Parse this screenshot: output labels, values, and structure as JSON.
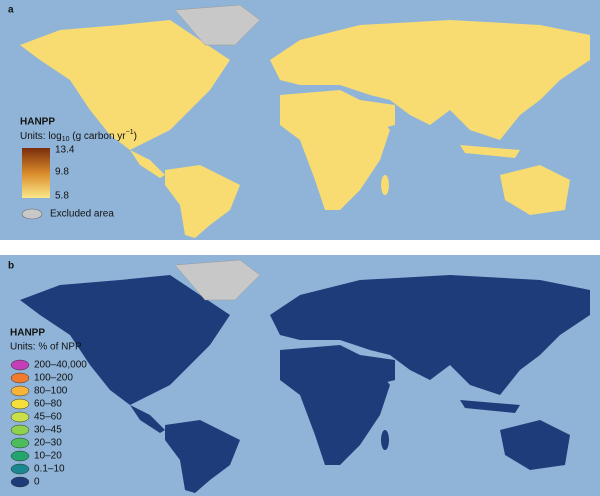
{
  "panel_a": {
    "label": "a",
    "legend": {
      "title": "HANPP",
      "units": [
        "Units: log",
        "10",
        " (g carbon yr",
        "−1",
        ")"
      ],
      "scale": [
        13.4,
        9.8,
        5.8
      ],
      "excluded": "Excluded area"
    }
  },
  "panel_b": {
    "label": "b",
    "legend": {
      "title": "HANPP",
      "units": [
        "Units: % of NPP"
      ],
      "items": [
        {
          "label": "200–40,000",
          "color": "#c33fb8"
        },
        {
          "label": "100–200",
          "color": "#f07b2c"
        },
        {
          "label": "80–100",
          "color": "#f8b33a"
        },
        {
          "label": "60–80",
          "color": "#f6df3c"
        },
        {
          "label": "45–60",
          "color": "#c9e04b"
        },
        {
          "label": "30–45",
          "color": "#8fd04d"
        },
        {
          "label": "20–30",
          "color": "#4dbd5c"
        },
        {
          "label": "10–20",
          "color": "#23a56d"
        },
        {
          "label": "0.1–10",
          "color": "#1b8790"
        },
        {
          "label": "0",
          "color": "#1e3b7a"
        }
      ]
    }
  }
}
